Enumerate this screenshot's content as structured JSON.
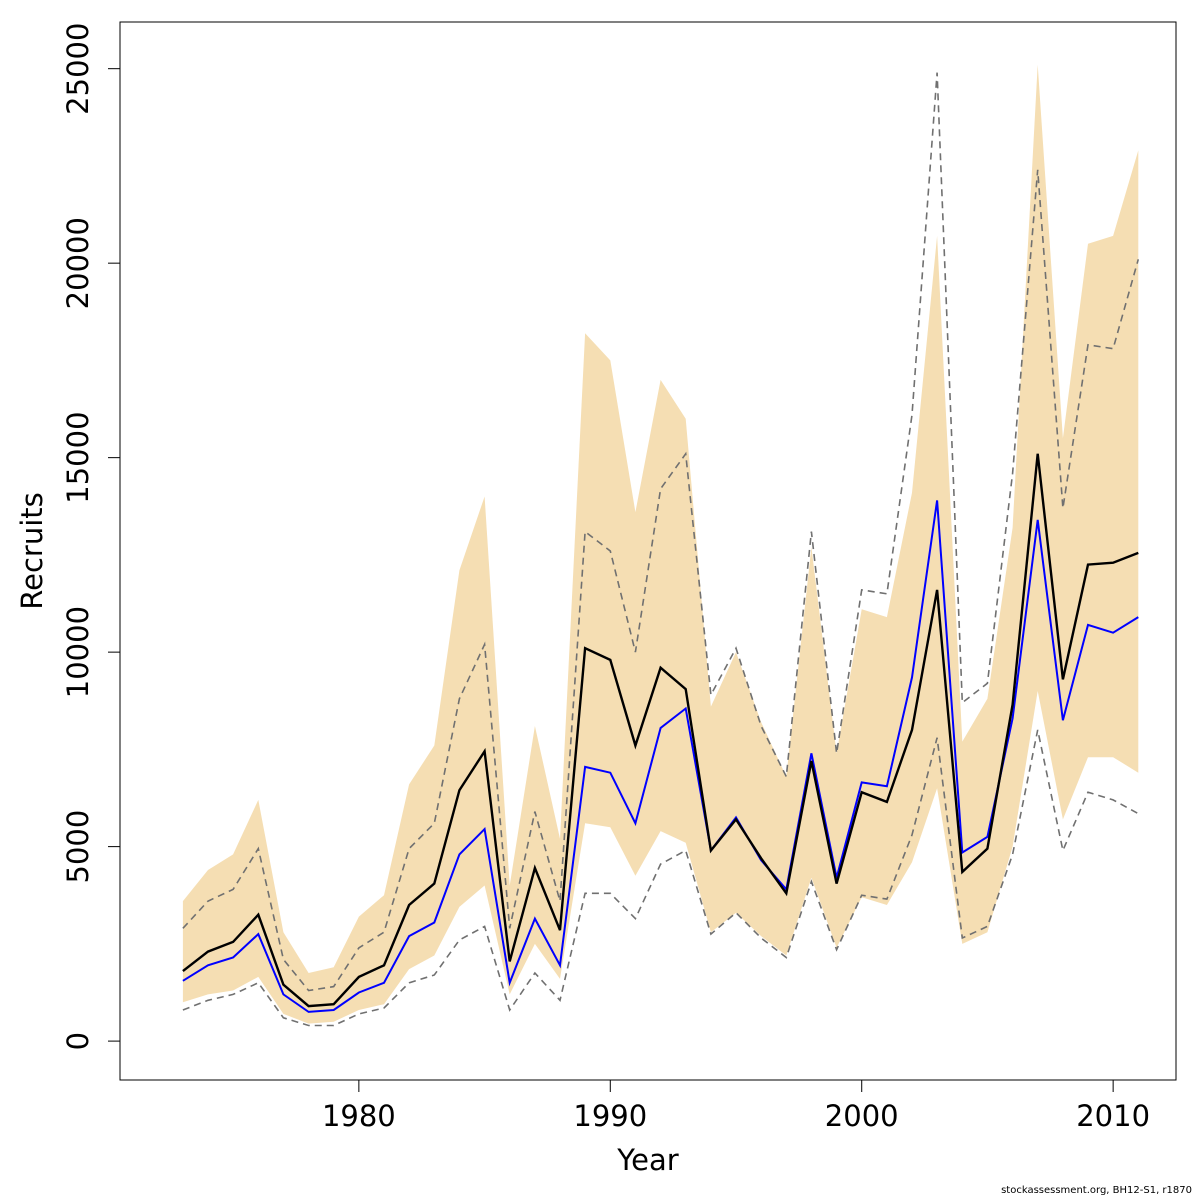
{
  "chart_data": {
    "type": "line",
    "title": "",
    "xlabel": "Year",
    "ylabel": "Recruits",
    "xlim": [
      1970.5,
      2012.5
    ],
    "ylim": [
      -1000,
      26200
    ],
    "x_ticks": [
      1980,
      1990,
      2000,
      2010
    ],
    "y_ticks": [
      0,
      5000,
      10000,
      15000,
      20000,
      25000
    ],
    "grid": false,
    "legend": "none",
    "colors": {
      "band": "#f5deb3",
      "black_line": "#000000",
      "blue_line": "#0000ff",
      "dashed": "#707070"
    },
    "x": [
      1973,
      1974,
      1975,
      1976,
      1977,
      1978,
      1979,
      1980,
      1981,
      1982,
      1983,
      1984,
      1985,
      1986,
      1987,
      1988,
      1989,
      1990,
      1991,
      1992,
      1993,
      1994,
      1995,
      1996,
      1997,
      1998,
      1999,
      2000,
      2001,
      2002,
      2003,
      2004,
      2005,
      2006,
      2007,
      2008,
      2009,
      2010,
      2011
    ],
    "series": [
      {
        "kind": "band",
        "lower": [
          1000,
          1200,
          1300,
          1650,
          700,
          450,
          500,
          800,
          950,
          1850,
          2200,
          3450,
          4000,
          1200,
          2500,
          1600,
          5600,
          5500,
          4250,
          5400,
          5100,
          2800,
          3300,
          2700,
          2200,
          4200,
          2400,
          3700,
          3500,
          4600,
          6500,
          2500,
          2800,
          5000,
          9000,
          5700,
          7300,
          7300,
          6900
        ],
        "upper": [
          3600,
          4400,
          4800,
          6200,
          2800,
          1750,
          1900,
          3200,
          3750,
          6600,
          7600,
          12100,
          14000,
          4000,
          8100,
          5200,
          18200,
          17500,
          13600,
          17000,
          16000,
          8600,
          10000,
          8200,
          6800,
          12700,
          7400,
          11100,
          10900,
          14100,
          20700,
          7700,
          8800,
          13200,
          25100,
          15500,
          20500,
          20700,
          22900
        ]
      },
      {
        "kind": "dashed-upper",
        "values": [
          2900,
          3600,
          3900,
          4950,
          2100,
          1300,
          1400,
          2400,
          2800,
          4950,
          5600,
          8800,
          10200,
          2900,
          5900,
          3600,
          13100,
          12600,
          10000,
          14200,
          15100,
          8900,
          10100,
          8100,
          6800,
          13100,
          7400,
          11600,
          11500,
          16100,
          24900,
          8700,
          9200,
          14600,
          22400,
          13700,
          17900,
          17800,
          20100
        ]
      },
      {
        "kind": "dashed-lower",
        "values": [
          800,
          1050,
          1200,
          1500,
          600,
          400,
          400,
          700,
          850,
          1500,
          1700,
          2600,
          2950,
          800,
          1750,
          1050,
          3800,
          3800,
          3150,
          4550,
          4900,
          2750,
          3300,
          2650,
          2150,
          4100,
          2350,
          3750,
          3650,
          5300,
          7800,
          2650,
          2950,
          4800,
          8000,
          4900,
          6400,
          6200,
          5850
        ]
      },
      {
        "kind": "black",
        "values": [
          1800,
          2300,
          2550,
          3250,
          1450,
          900,
          950,
          1650,
          1950,
          3500,
          4050,
          6450,
          7450,
          2050,
          4450,
          2850,
          10100,
          9800,
          7600,
          9600,
          9050,
          4900,
          5700,
          4700,
          3800,
          7200,
          4050,
          6400,
          6150,
          8000,
          11600,
          4350,
          4950,
          8650,
          15100,
          9300,
          12250,
          12300,
          12550
        ]
      },
      {
        "kind": "blue",
        "values": [
          1550,
          1950,
          2150,
          2750,
          1200,
          750,
          800,
          1250,
          1500,
          2700,
          3050,
          4800,
          5450,
          1500,
          3150,
          1950,
          7050,
          6900,
          5600,
          8050,
          8550,
          4900,
          5750,
          4650,
          3900,
          7400,
          4200,
          6650,
          6550,
          9350,
          13900,
          4850,
          5250,
          8300,
          13400,
          8250,
          10700,
          10500,
          10900
        ]
      }
    ]
  },
  "footer": {
    "credit": "stockassessment.org, BH12-S1, r1870"
  }
}
